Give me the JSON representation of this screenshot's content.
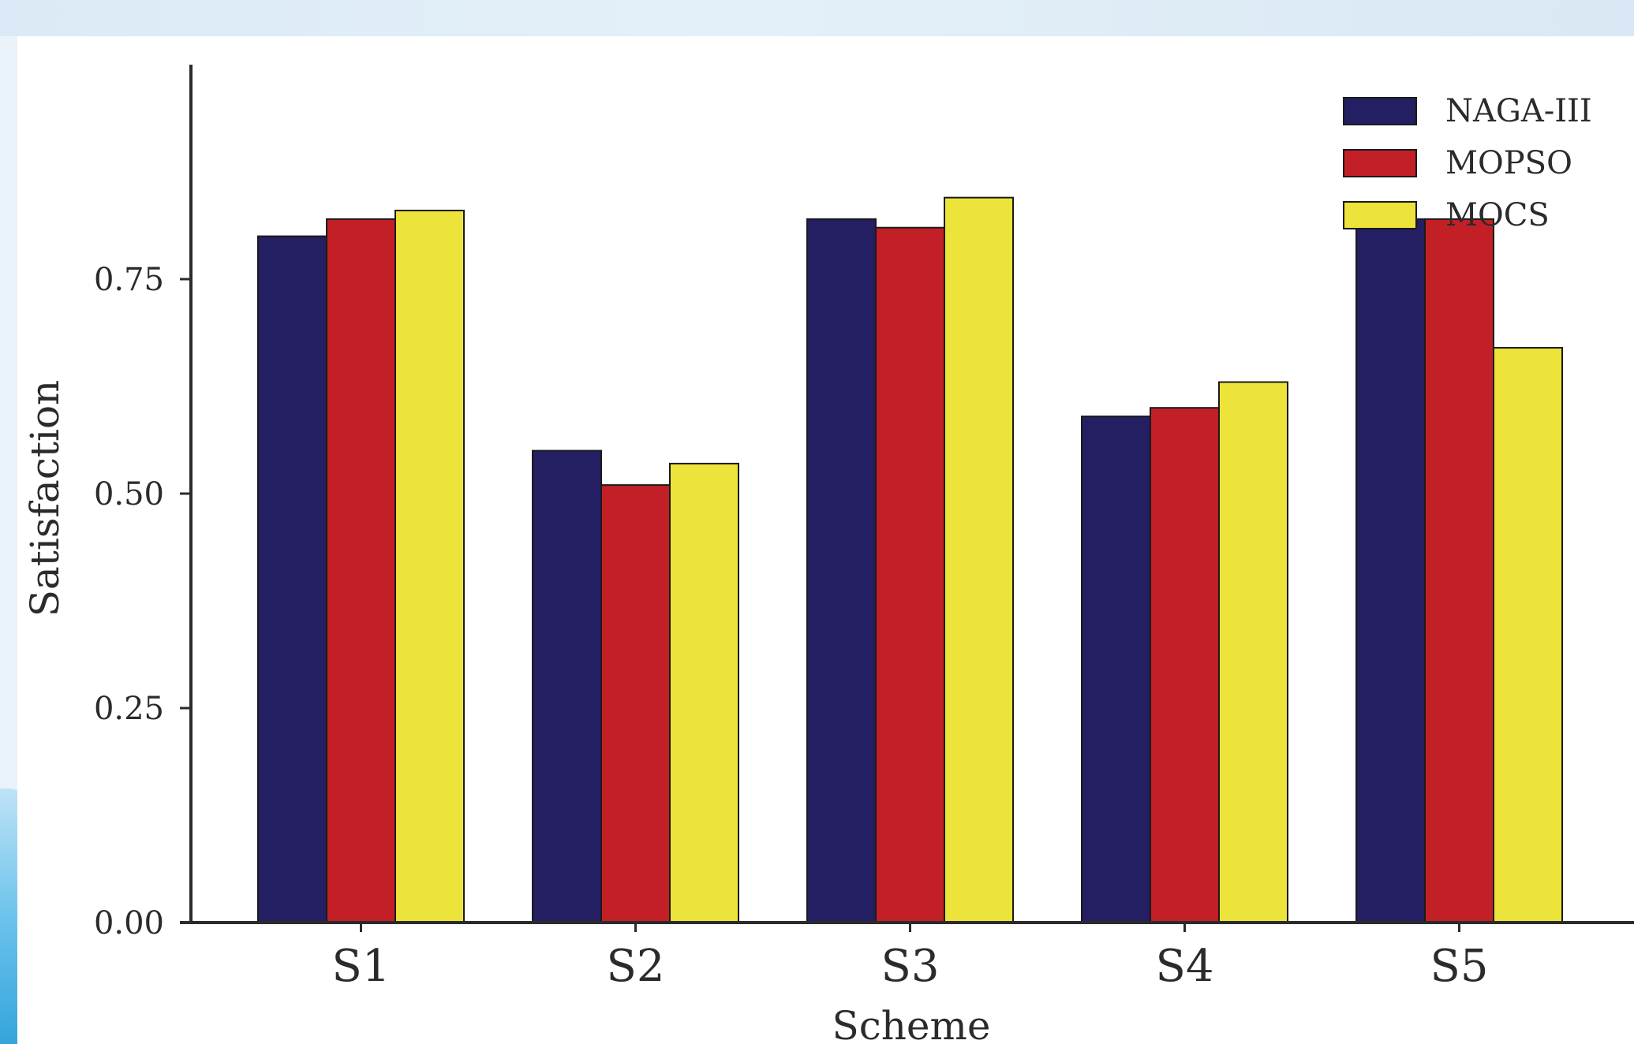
{
  "chart_data": {
    "type": "bar",
    "categories": [
      "S1",
      "S2",
      "S3",
      "S4",
      "S5"
    ],
    "series": [
      {
        "name": "NAGA-III",
        "color": "#241f63",
        "values": [
          0.8,
          0.55,
          0.82,
          0.59,
          0.82
        ]
      },
      {
        "name": "MOPSO",
        "color": "#c22026",
        "values": [
          0.82,
          0.51,
          0.81,
          0.6,
          0.82
        ]
      },
      {
        "name": "MOCS",
        "color": "#ece43a",
        "values": [
          0.83,
          0.535,
          0.845,
          0.63,
          0.67
        ]
      }
    ],
    "xlabel": "Scheme",
    "ylabel": "Satisfaction",
    "ylim": [
      0,
      1
    ],
    "yticks": [
      0.0,
      0.25,
      0.5,
      0.75
    ],
    "ytick_labels": [
      "0.00",
      "0.25",
      "0.50",
      "0.75"
    ],
    "grid": false,
    "legend_position": "top-right"
  }
}
